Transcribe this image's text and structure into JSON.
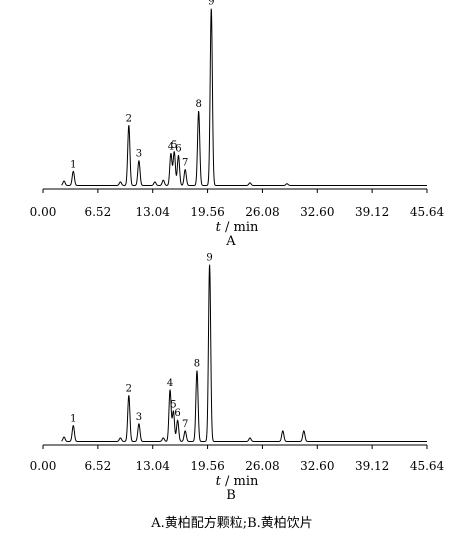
{
  "caption": "A.黄柏配方颗粒;B.黄柏饮片",
  "chart_data": [
    {
      "type": "line",
      "panel_label": "A",
      "xlabel_italic": "t",
      "xlabel_rest": " / min",
      "ylabel": "",
      "x_ticks": [
        "0.00",
        "6.52",
        "13.04",
        "19.56",
        "26.08",
        "32.60",
        "39.12",
        "45.64"
      ],
      "xlim": [
        0,
        45.64
      ],
      "ylim": [
        0,
        100
      ],
      "baseline": 2,
      "peaks": [
        {
          "label": "1",
          "t": 3.6,
          "h": 8
        },
        {
          "label": "2",
          "t": 10.2,
          "h": 34
        },
        {
          "label": "3",
          "t": 11.4,
          "h": 14
        },
        {
          "label": "4",
          "t": 15.2,
          "h": 18
        },
        {
          "label": "5",
          "t": 15.6,
          "h": 19
        },
        {
          "label": "6",
          "t": 16.1,
          "h": 17
        },
        {
          "label": "7",
          "t": 16.9,
          "h": 9
        },
        {
          "label": "8",
          "t": 18.5,
          "h": 42
        },
        {
          "label": "9",
          "t": 20.0,
          "h": 100
        }
      ],
      "minor_peaks": [
        {
          "t": 2.5,
          "h": 2.5
        },
        {
          "t": 9.2,
          "h": 2
        },
        {
          "t": 13.3,
          "h": 2
        },
        {
          "t": 14.3,
          "h": 3
        },
        {
          "t": 24.6,
          "h": 1.5
        },
        {
          "t": 29.0,
          "h": 1
        }
      ]
    },
    {
      "type": "line",
      "panel_label": "B",
      "xlabel_italic": "t",
      "xlabel_rest": " / min",
      "ylabel": "",
      "x_ticks": [
        "0.00",
        "6.52",
        "13.04",
        "19.56",
        "26.08",
        "32.60",
        "39.12",
        "45.64"
      ],
      "xlim": [
        0,
        45.64
      ],
      "ylim": [
        0,
        100
      ],
      "baseline": 2,
      "peaks": [
        {
          "label": "1",
          "t": 3.6,
          "h": 9
        },
        {
          "label": "2",
          "t": 10.2,
          "h": 26
        },
        {
          "label": "3",
          "t": 11.4,
          "h": 10
        },
        {
          "label": "4",
          "t": 15.1,
          "h": 29
        },
        {
          "label": "5",
          "t": 15.5,
          "h": 17
        },
        {
          "label": "6",
          "t": 16.0,
          "h": 12
        },
        {
          "label": "7",
          "t": 16.9,
          "h": 6
        },
        {
          "label": "8",
          "t": 18.3,
          "h": 40
        },
        {
          "label": "9",
          "t": 19.8,
          "h": 100
        }
      ],
      "minor_peaks": [
        {
          "t": 2.5,
          "h": 2.5
        },
        {
          "t": 9.2,
          "h": 2
        },
        {
          "t": 14.3,
          "h": 2
        },
        {
          "t": 24.6,
          "h": 2
        },
        {
          "t": 28.5,
          "h": 6
        },
        {
          "t": 31.0,
          "h": 6
        }
      ]
    }
  ]
}
